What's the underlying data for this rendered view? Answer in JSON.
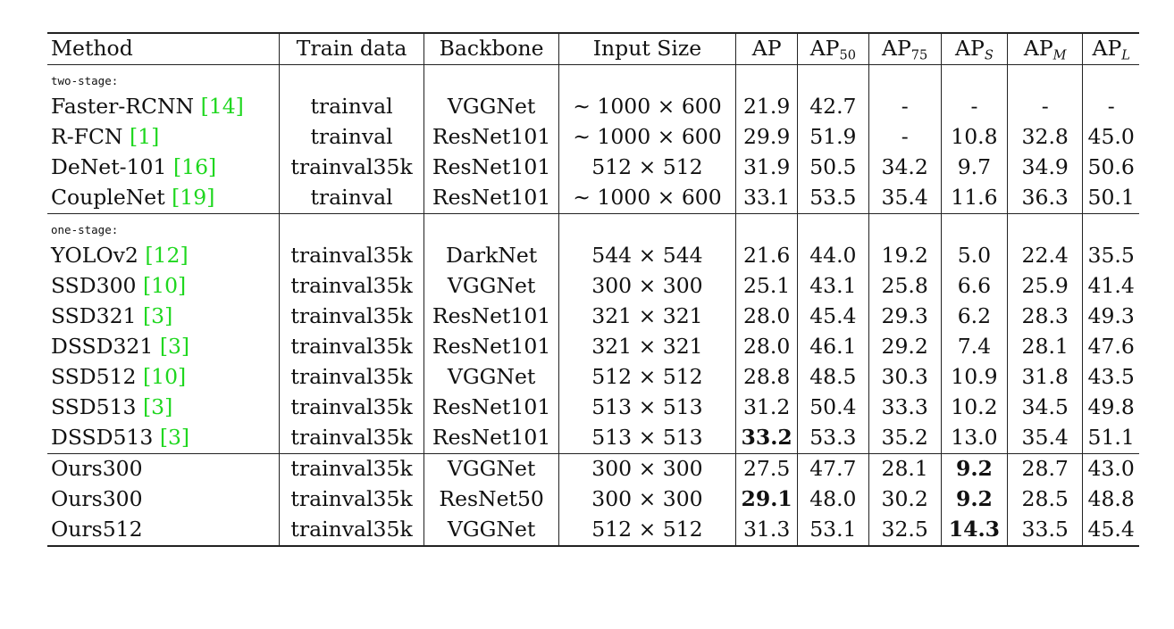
{
  "table": {
    "headers": [
      {
        "main": "Method",
        "sub": ""
      },
      {
        "main": "Train data",
        "sub": ""
      },
      {
        "main": "Backbone",
        "sub": ""
      },
      {
        "main": "Input Size",
        "sub": ""
      },
      {
        "main": "AP",
        "sub": ""
      },
      {
        "main": "AP",
        "sub": "50"
      },
      {
        "main": "AP",
        "sub": "75"
      },
      {
        "main": "AP",
        "sub": "S"
      },
      {
        "main": "AP",
        "sub": "M"
      },
      {
        "main": "AP",
        "sub": "L"
      }
    ],
    "sections": [
      {
        "label": "two-stage:",
        "rows": [
          {
            "method": "Faster-RCNN",
            "ref": "[14]",
            "train": "trainval",
            "backbone": "VGGNet",
            "input": "∼ 1000 × 600",
            "ap": "21.9",
            "ap50": "42.7",
            "ap75": "-",
            "aps": "-",
            "apm": "-",
            "apl": "-"
          },
          {
            "method": "R-FCN",
            "ref": "[1]",
            "train": "trainval",
            "backbone": "ResNet101",
            "input": "∼ 1000 × 600",
            "ap": "29.9",
            "ap50": "51.9",
            "ap75": "-",
            "aps": "10.8",
            "apm": "32.8",
            "apl": "45.0"
          },
          {
            "method": "DeNet-101",
            "ref": "[16]",
            "train": "trainval35k",
            "backbone": "ResNet101",
            "input": "512 × 512",
            "ap": "31.9",
            "ap50": "50.5",
            "ap75": "34.2",
            "aps": "9.7",
            "apm": "34.9",
            "apl": "50.6"
          },
          {
            "method": "CoupleNet",
            "ref": "[19]",
            "train": "trainval",
            "backbone": "ResNet101",
            "input": "∼ 1000 × 600",
            "ap": "33.1",
            "ap50": "53.5",
            "ap75": "35.4",
            "aps": "11.6",
            "apm": "36.3",
            "apl": "50.1"
          }
        ]
      },
      {
        "label": "one-stage:",
        "rows": [
          {
            "method": "YOLOv2",
            "ref": "[12]",
            "train": "trainval35k",
            "backbone": "DarkNet",
            "input": "544 × 544",
            "ap": "21.6",
            "ap50": "44.0",
            "ap75": "19.2",
            "aps": "5.0",
            "apm": "22.4",
            "apl": "35.5"
          },
          {
            "method": "SSD300",
            "ref": "[10]",
            "train": "trainval35k",
            "backbone": "VGGNet",
            "input": "300 × 300",
            "ap": "25.1",
            "ap50": "43.1",
            "ap75": "25.8",
            "aps": "6.6",
            "apm": "25.9",
            "apl": "41.4"
          },
          {
            "method": "SSD321",
            "ref": "[3]",
            "train": "trainval35k",
            "backbone": "ResNet101",
            "input": "321 × 321",
            "ap": "28.0",
            "ap50": "45.4",
            "ap75": "29.3",
            "aps": "6.2",
            "apm": "28.3",
            "apl": "49.3"
          },
          {
            "method": "DSSD321",
            "ref": "[3]",
            "train": "trainval35k",
            "backbone": "ResNet101",
            "input": "321 × 321",
            "ap": "28.0",
            "ap50": "46.1",
            "ap75": "29.2",
            "aps": "7.4",
            "apm": "28.1",
            "apl": "47.6"
          },
          {
            "method": "SSD512",
            "ref": "[10]",
            "train": "trainval35k",
            "backbone": "VGGNet",
            "input": "512 × 512",
            "ap": "28.8",
            "ap50": "48.5",
            "ap75": "30.3",
            "aps": "10.9",
            "apm": "31.8",
            "apl": "43.5"
          },
          {
            "method": "SSD513",
            "ref": "[3]",
            "train": "trainval35k",
            "backbone": "ResNet101",
            "input": "513 × 513",
            "ap": "31.2",
            "ap50": "50.4",
            "ap75": "33.3",
            "aps": "10.2",
            "apm": "34.5",
            "apl": "49.8"
          },
          {
            "method": "DSSD513",
            "ref": "[3]",
            "train": "trainval35k",
            "backbone": "ResNet101",
            "input": "513 × 513",
            "ap": "33.2",
            "ap50": "53.3",
            "ap75": "35.2",
            "aps": "13.0",
            "apm": "35.4",
            "apl": "51.1"
          }
        ]
      },
      {
        "label": "",
        "rows": [
          {
            "method": "Ours300",
            "ref": "",
            "train": "trainval35k",
            "backbone": "VGGNet",
            "input": "300 × 300",
            "ap": "27.5",
            "ap50": "47.7",
            "ap75": "28.1",
            "aps": "9.2",
            "apm": "28.7",
            "apl": "43.0"
          },
          {
            "method": "Ours300",
            "ref": "",
            "train": "trainval35k",
            "backbone": "ResNet50",
            "input": "300 × 300",
            "ap": "29.1",
            "ap50": "48.0",
            "ap75": "30.2",
            "aps": "9.2",
            "apm": "28.5",
            "apl": "48.8"
          },
          {
            "method": "Ours512",
            "ref": "",
            "train": "trainval35k",
            "backbone": "VGGNet",
            "input": "512 × 512",
            "ap": "31.3",
            "ap50": "53.1",
            "ap75": "32.5",
            "aps": "14.3",
            "apm": "33.5",
            "apl": "45.4"
          }
        ]
      }
    ],
    "bold_cells": [
      {
        "section": 1,
        "row": 6,
        "col": "ap"
      },
      {
        "section": 2,
        "row": 0,
        "col": "aps"
      },
      {
        "section": 2,
        "row": 1,
        "col": "ap"
      },
      {
        "section": 2,
        "row": 1,
        "col": "aps"
      },
      {
        "section": 2,
        "row": 2,
        "col": "aps"
      }
    ],
    "ref_color": "#1fd71f"
  }
}
